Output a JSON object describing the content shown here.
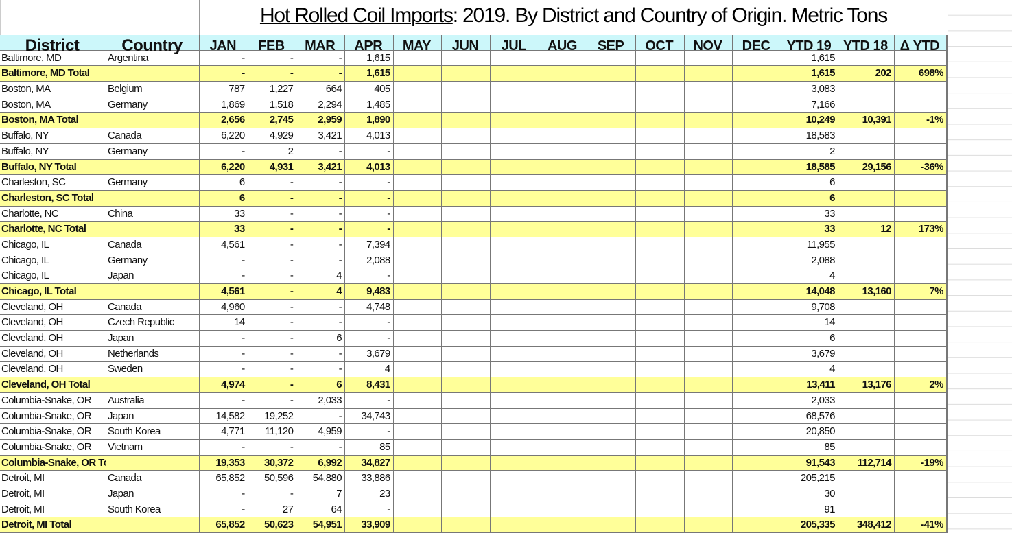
{
  "title": {
    "underlined": "Hot Rolled Coil Imports",
    "rest": ": 2019. By District and Country of Origin. Metric Tons"
  },
  "columns": [
    "District",
    "Country",
    "JAN",
    "FEB",
    "MAR",
    "APR",
    "MAY",
    "JUN",
    "JUL",
    "AUG",
    "SEP",
    "OCT",
    "NOV",
    "DEC",
    "YTD 19",
    "YTD 18",
    "Δ YTD"
  ],
  "colors": {
    "header_bg": "#ccf7fa",
    "total_bg": "#ffff99"
  },
  "rows": [
    {
      "district": "Baltimore, MD",
      "country": "Argentina",
      "months": [
        "-",
        "-",
        "-",
        "1,615"
      ],
      "ytd19": "1,615",
      "ytd18": "",
      "dytd": "",
      "total": false
    },
    {
      "district": "Baltimore, MD Total",
      "country": "",
      "months": [
        "-",
        "-",
        "-",
        "1,615"
      ],
      "ytd19": "1,615",
      "ytd18": "202",
      "dytd": "698%",
      "total": true
    },
    {
      "district": "Boston, MA",
      "country": "Belgium",
      "months": [
        "787",
        "1,227",
        "664",
        "405"
      ],
      "ytd19": "3,083",
      "ytd18": "",
      "dytd": "",
      "total": false
    },
    {
      "district": "Boston, MA",
      "country": "Germany",
      "months": [
        "1,869",
        "1,518",
        "2,294",
        "1,485"
      ],
      "ytd19": "7,166",
      "ytd18": "",
      "dytd": "",
      "total": false
    },
    {
      "district": "Boston, MA Total",
      "country": "",
      "months": [
        "2,656",
        "2,745",
        "2,959",
        "1,890"
      ],
      "ytd19": "10,249",
      "ytd18": "10,391",
      "dytd": "-1%",
      "total": true
    },
    {
      "district": "Buffalo, NY",
      "country": "Canada",
      "months": [
        "6,220",
        "4,929",
        "3,421",
        "4,013"
      ],
      "ytd19": "18,583",
      "ytd18": "",
      "dytd": "",
      "total": false
    },
    {
      "district": "Buffalo, NY",
      "country": "Germany",
      "months": [
        "-",
        "2",
        "-",
        "-"
      ],
      "ytd19": "2",
      "ytd18": "",
      "dytd": "",
      "total": false
    },
    {
      "district": "Buffalo, NY Total",
      "country": "",
      "months": [
        "6,220",
        "4,931",
        "3,421",
        "4,013"
      ],
      "ytd19": "18,585",
      "ytd18": "29,156",
      "dytd": "-36%",
      "total": true
    },
    {
      "district": "Charleston, SC",
      "country": "Germany",
      "months": [
        "6",
        "-",
        "-",
        "-"
      ],
      "ytd19": "6",
      "ytd18": "",
      "dytd": "",
      "total": false
    },
    {
      "district": "Charleston, SC Total",
      "country": "",
      "months": [
        "6",
        "-",
        "-",
        "-"
      ],
      "ytd19": "6",
      "ytd18": "",
      "dytd": "",
      "total": true
    },
    {
      "district": "Charlotte, NC",
      "country": "China",
      "months": [
        "33",
        "-",
        "-",
        "-"
      ],
      "ytd19": "33",
      "ytd18": "",
      "dytd": "",
      "total": false
    },
    {
      "district": "Charlotte, NC Total",
      "country": "",
      "months": [
        "33",
        "-",
        "-",
        "-"
      ],
      "ytd19": "33",
      "ytd18": "12",
      "dytd": "173%",
      "total": true
    },
    {
      "district": "Chicago, IL",
      "country": "Canada",
      "months": [
        "4,561",
        "-",
        "-",
        "7,394"
      ],
      "ytd19": "11,955",
      "ytd18": "",
      "dytd": "",
      "total": false
    },
    {
      "district": "Chicago, IL",
      "country": "Germany",
      "months": [
        "-",
        "-",
        "-",
        "2,088"
      ],
      "ytd19": "2,088",
      "ytd18": "",
      "dytd": "",
      "total": false
    },
    {
      "district": "Chicago, IL",
      "country": "Japan",
      "months": [
        "-",
        "-",
        "4",
        "-"
      ],
      "ytd19": "4",
      "ytd18": "",
      "dytd": "",
      "total": false
    },
    {
      "district": "Chicago, IL Total",
      "country": "",
      "months": [
        "4,561",
        "-",
        "4",
        "9,483"
      ],
      "ytd19": "14,048",
      "ytd18": "13,160",
      "dytd": "7%",
      "total": true
    },
    {
      "district": "Cleveland, OH",
      "country": "Canada",
      "months": [
        "4,960",
        "-",
        "-",
        "4,748"
      ],
      "ytd19": "9,708",
      "ytd18": "",
      "dytd": "",
      "total": false
    },
    {
      "district": "Cleveland, OH",
      "country": "Czech Republic",
      "months": [
        "14",
        "-",
        "-",
        "-"
      ],
      "ytd19": "14",
      "ytd18": "",
      "dytd": "",
      "total": false
    },
    {
      "district": "Cleveland, OH",
      "country": "Japan",
      "months": [
        "-",
        "-",
        "6",
        "-"
      ],
      "ytd19": "6",
      "ytd18": "",
      "dytd": "",
      "total": false
    },
    {
      "district": "Cleveland, OH",
      "country": "Netherlands",
      "months": [
        "-",
        "-",
        "-",
        "3,679"
      ],
      "ytd19": "3,679",
      "ytd18": "",
      "dytd": "",
      "total": false
    },
    {
      "district": "Cleveland, OH",
      "country": "Sweden",
      "months": [
        "-",
        "-",
        "-",
        "4"
      ],
      "ytd19": "4",
      "ytd18": "",
      "dytd": "",
      "total": false
    },
    {
      "district": "Cleveland, OH Total",
      "country": "",
      "months": [
        "4,974",
        "-",
        "6",
        "8,431"
      ],
      "ytd19": "13,411",
      "ytd18": "13,176",
      "dytd": "2%",
      "total": true
    },
    {
      "district": "Columbia-Snake, OR",
      "country": "Australia",
      "months": [
        "-",
        "-",
        "2,033",
        "-"
      ],
      "ytd19": "2,033",
      "ytd18": "",
      "dytd": "",
      "total": false
    },
    {
      "district": "Columbia-Snake, OR",
      "country": "Japan",
      "months": [
        "14,582",
        "19,252",
        "-",
        "34,743"
      ],
      "ytd19": "68,576",
      "ytd18": "",
      "dytd": "",
      "total": false
    },
    {
      "district": "Columbia-Snake, OR",
      "country": "South Korea",
      "months": [
        "4,771",
        "11,120",
        "4,959",
        "-"
      ],
      "ytd19": "20,850",
      "ytd18": "",
      "dytd": "",
      "total": false
    },
    {
      "district": "Columbia-Snake, OR",
      "country": "Vietnam",
      "months": [
        "-",
        "-",
        "-",
        "85"
      ],
      "ytd19": "85",
      "ytd18": "",
      "dytd": "",
      "total": false
    },
    {
      "district": "Columbia-Snake, OR Total",
      "country": "",
      "months": [
        "19,353",
        "30,372",
        "6,992",
        "34,827"
      ],
      "ytd19": "91,543",
      "ytd18": "112,714",
      "dytd": "-19%",
      "total": true
    },
    {
      "district": "Detroit, MI",
      "country": "Canada",
      "months": [
        "65,852",
        "50,596",
        "54,880",
        "33,886"
      ],
      "ytd19": "205,215",
      "ytd18": "",
      "dytd": "",
      "total": false
    },
    {
      "district": "Detroit, MI",
      "country": "Japan",
      "months": [
        "-",
        "-",
        "7",
        "23"
      ],
      "ytd19": "30",
      "ytd18": "",
      "dytd": "",
      "total": false
    },
    {
      "district": "Detroit, MI",
      "country": "South Korea",
      "months": [
        "-",
        "27",
        "64",
        "-"
      ],
      "ytd19": "91",
      "ytd18": "",
      "dytd": "",
      "total": false
    },
    {
      "district": "Detroit, MI Total",
      "country": "",
      "months": [
        "65,852",
        "50,623",
        "54,951",
        "33,909"
      ],
      "ytd19": "205,335",
      "ytd18": "348,412",
      "dytd": "-41%",
      "total": true
    }
  ]
}
